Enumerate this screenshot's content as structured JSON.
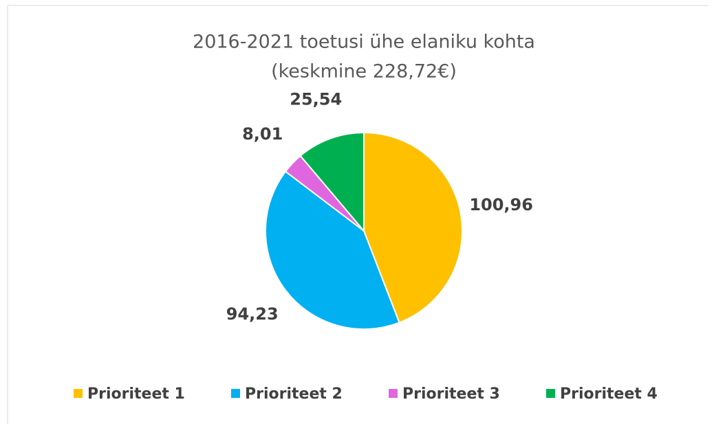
{
  "chart_data": {
    "type": "pie",
    "title": "2016-2021 toetusi ühe elaniku kohta",
    "subtitle": "(keskmine 228,72€)",
    "categories": [
      "Prioriteet 1",
      "Prioriteet 2",
      "Prioriteet 3",
      "Prioriteet 4"
    ],
    "values": [
      100.96,
      94.23,
      8.01,
      25.54
    ],
    "value_labels": [
      "100,96",
      "94,23",
      "8,01",
      "25,54"
    ],
    "colors": [
      "#ffc000",
      "#00b0f0",
      "#e066e0",
      "#00b050"
    ],
    "legend": "bottom"
  }
}
